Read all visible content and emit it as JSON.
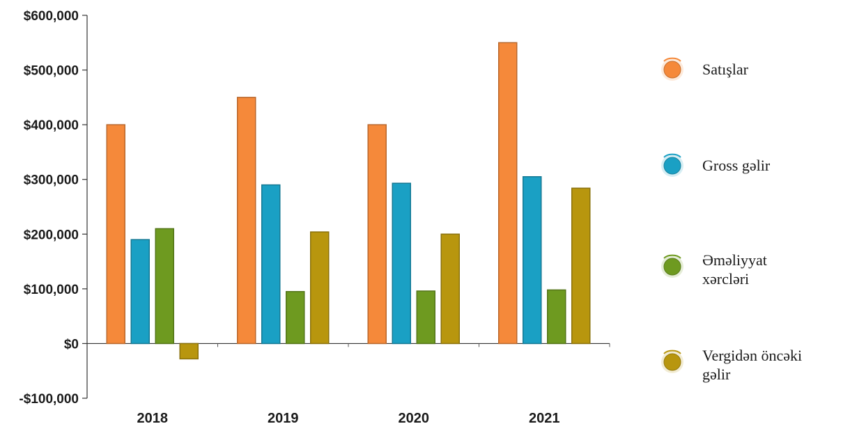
{
  "chart_data": {
    "type": "bar",
    "title": "",
    "xlabel": "",
    "ylabel": "",
    "categories": [
      "2018",
      "2019",
      "2020",
      "2021"
    ],
    "ylim": [
      -100000,
      600000
    ],
    "yticks": [
      600000,
      500000,
      400000,
      300000,
      200000,
      100000,
      0,
      -100000
    ],
    "ytick_labels": [
      "$600,000",
      "$500,000",
      "$400,000",
      "$300,000",
      "$200,000",
      "$100,000",
      "$0",
      "-$100,000"
    ],
    "grid": false,
    "legend_position": "right",
    "series": [
      {
        "name": "Satışlar",
        "color": "#f5893a",
        "values": [
          400000,
          450000,
          400000,
          550000
        ]
      },
      {
        "name": "Gross gəlir",
        "color": "#1aa0c4",
        "values": [
          190000,
          290000,
          293000,
          305000
        ]
      },
      {
        "name": "Əməliyyat xərcləri",
        "color": "#6e9a20",
        "values": [
          210000,
          95000,
          96000,
          98000
        ]
      },
      {
        "name": "Vergidən öncəki gəlir",
        "color": "#b8960e",
        "values": [
          -28000,
          204000,
          200000,
          284000
        ]
      }
    ]
  }
}
